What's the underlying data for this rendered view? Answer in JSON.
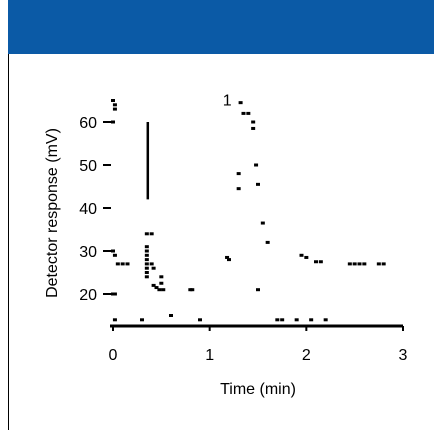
{
  "chart_data": {
    "type": "scatter",
    "xlabel": "Time (min)",
    "ylabel": "Detector response (mV)",
    "x_ticks": [
      0,
      1,
      2,
      3
    ],
    "y_ticks": [
      20,
      30,
      40,
      50,
      60
    ],
    "xlim": [
      0,
      3
    ],
    "ylim": [
      12,
      67
    ],
    "grid": false,
    "annotations": [
      {
        "text": "1",
        "x": 1.28,
        "y": 65.2
      }
    ],
    "series": [
      {
        "color": "#000000",
        "points": [
          [
            0.0,
            65.0
          ],
          [
            0.02,
            64.0
          ],
          [
            0.02,
            63.0
          ],
          [
            0.0,
            60.0
          ],
          [
            0.0,
            30.0
          ],
          [
            0.02,
            29.0
          ],
          [
            0.05,
            27.0
          ],
          [
            0.1,
            27.0
          ],
          [
            0.15,
            27.0
          ],
          [
            0.0,
            20.0
          ],
          [
            0.02,
            20.0
          ],
          [
            0.02,
            14.0
          ],
          [
            0.3,
            14.0
          ],
          [
            0.35,
            31.0
          ],
          [
            0.35,
            30.0
          ],
          [
            0.35,
            29.0
          ],
          [
            0.35,
            28.0
          ],
          [
            0.35,
            27.0
          ],
          [
            0.35,
            26.0
          ],
          [
            0.35,
            25.0
          ],
          [
            0.35,
            24.0
          ],
          [
            0.35,
            34.0
          ],
          [
            0.4,
            34.0
          ],
          [
            0.4,
            27.0
          ],
          [
            0.42,
            26.0
          ],
          [
            0.42,
            22.0
          ],
          [
            0.45,
            21.5
          ],
          [
            0.48,
            21.0
          ],
          [
            0.5,
            24.0
          ],
          [
            0.5,
            22.5
          ],
          [
            0.52,
            21.0
          ],
          [
            0.6,
            15.0
          ],
          [
            0.8,
            21.0
          ],
          [
            0.82,
            21.0
          ],
          [
            0.9,
            14.0
          ],
          [
            1.18,
            28.5
          ],
          [
            1.2,
            28.0
          ],
          [
            1.3,
            48.0
          ],
          [
            1.3,
            44.5
          ],
          [
            1.32,
            64.5
          ],
          [
            1.35,
            62.0
          ],
          [
            1.4,
            62.0
          ],
          [
            1.45,
            60.0
          ],
          [
            1.45,
            58.5
          ],
          [
            1.48,
            50.0
          ],
          [
            1.5,
            45.5
          ],
          [
            1.5,
            21.0
          ],
          [
            1.55,
            36.5
          ],
          [
            1.6,
            32.0
          ],
          [
            1.7,
            14.0
          ],
          [
            1.75,
            14.0
          ],
          [
            1.9,
            14.0
          ],
          [
            1.95,
            29.0
          ],
          [
            2.0,
            28.5
          ],
          [
            2.05,
            14.0
          ],
          [
            2.1,
            27.5
          ],
          [
            2.15,
            27.5
          ],
          [
            2.2,
            14.0
          ],
          [
            2.45,
            27.0
          ],
          [
            2.5,
            27.0
          ],
          [
            2.55,
            27.0
          ],
          [
            2.6,
            27.0
          ],
          [
            2.75,
            27.0
          ],
          [
            2.8,
            27.0
          ]
        ]
      }
    ],
    "vertical_bars": [
      {
        "x": 0.36,
        "y0": 42.0,
        "y1": 60.0
      }
    ]
  }
}
